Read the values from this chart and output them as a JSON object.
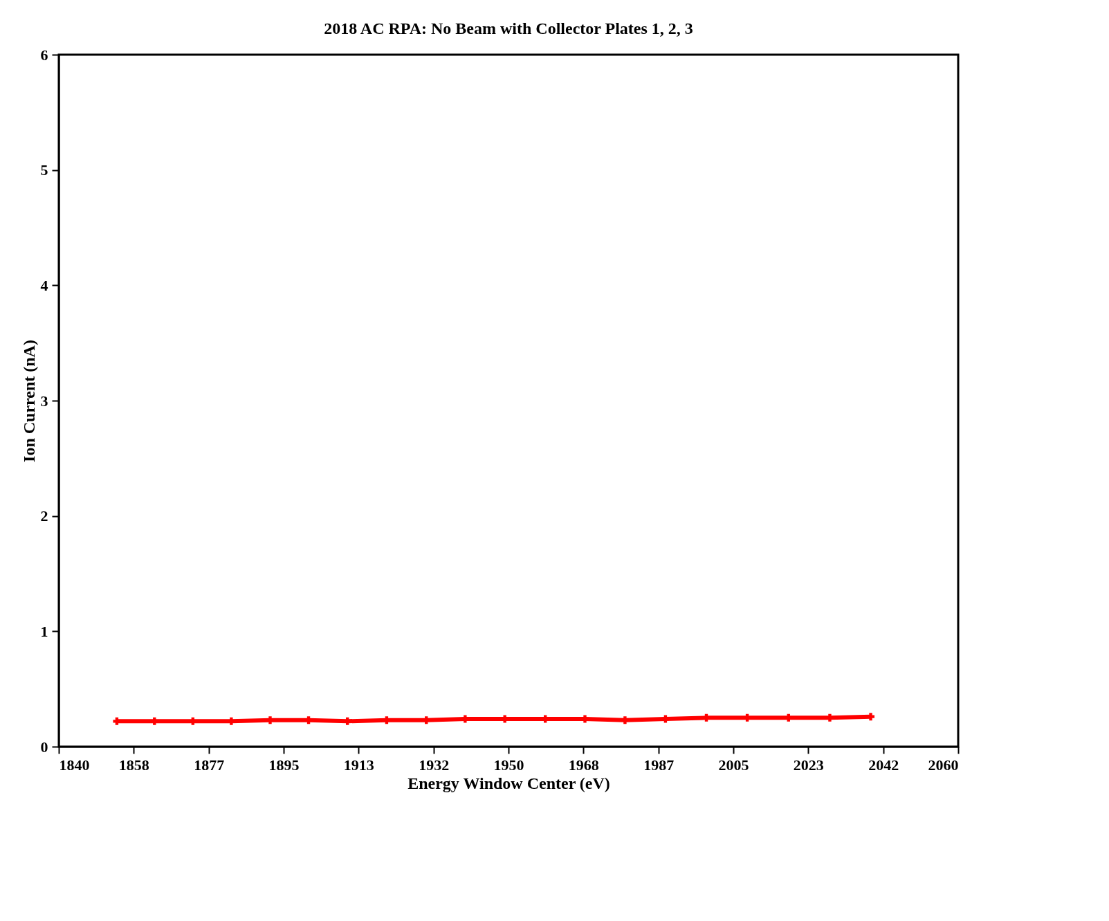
{
  "chart_data": {
    "type": "line",
    "title": "2018 AC RPA: No Beam with Collector Plates 1, 2, 3",
    "xlabel": "Energy Window Center (eV)",
    "ylabel": "Ion Current (nA)",
    "x": [
      1854.2,
      1863.4,
      1872.8,
      1882.2,
      1891.7,
      1901.1,
      1910.6,
      1920.2,
      1929.9,
      1939.4,
      1949.1,
      1959.0,
      1968.7,
      1978.5,
      1988.4,
      1998.4,
      2008.4,
      2018.5,
      2028.6,
      2038.6
    ],
    "series": [
      {
        "color": "#ff0000",
        "values": [
          0.22,
          0.22,
          0.22,
          0.22,
          0.23,
          0.23,
          0.22,
          0.23,
          0.23,
          0.24,
          0.24,
          0.24,
          0.24,
          0.23,
          0.24,
          0.25,
          0.25,
          0.25,
          0.25,
          0.26
        ]
      }
    ],
    "xlim": [
      1840,
      2060
    ],
    "xticks": [
      1840,
      {
        "value": 1858.333,
        "label": "1858"
      },
      {
        "value": 1876.667,
        "label": "1877"
      },
      1895,
      {
        "value": 1913.333,
        "label": "1913"
      },
      {
        "value": 1931.667,
        "label": "1932"
      },
      1950,
      {
        "value": 1968.333,
        "label": "1968"
      },
      {
        "value": 1986.667,
        "label": "1987"
      },
      2005,
      {
        "value": 2023.333,
        "label": "2023"
      },
      {
        "value": 2041.667,
        "label": "2042"
      },
      2060
    ],
    "ylim": [
      0,
      6
    ],
    "yticks": [
      0,
      1,
      2,
      3,
      4,
      5,
      6
    ],
    "grid": false,
    "marker": "cross",
    "line_style": "solid"
  }
}
